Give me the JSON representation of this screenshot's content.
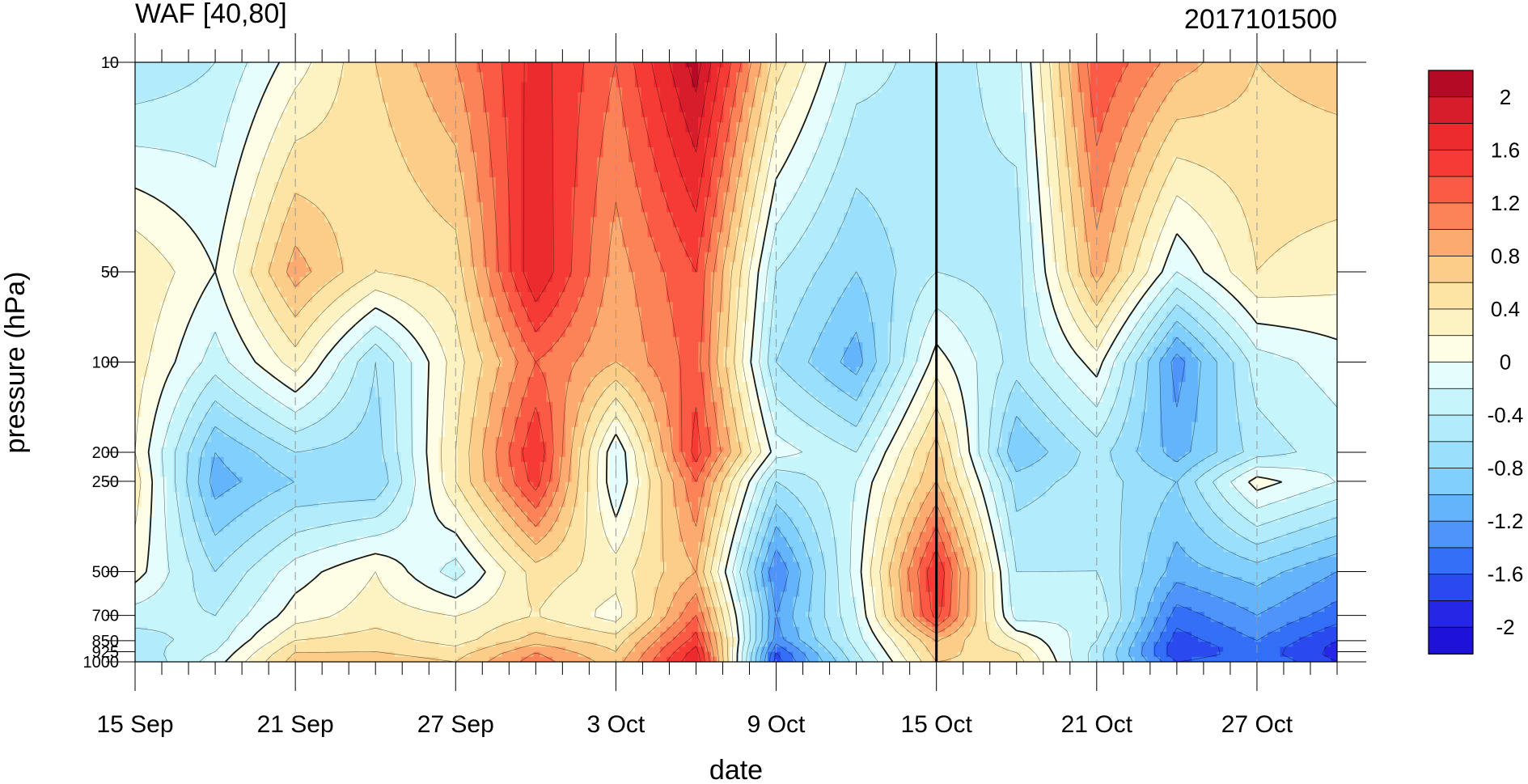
{
  "chart_data": {
    "type": "heatmap",
    "title": "WAF [40,80]",
    "subtitle_right": "2017101500",
    "xlabel": "date",
    "ylabel": "pressure (hPa)",
    "x_tick_labels": [
      "15 Sep",
      "21 Sep",
      "27 Sep",
      "3 Oct",
      "9 Oct",
      "15 Oct",
      "21 Oct",
      "27 Oct"
    ],
    "x_tick_days": [
      0,
      6,
      12,
      18,
      24,
      30,
      36,
      42
    ],
    "x_range_days": [
      0,
      45
    ],
    "analysis_day": 30,
    "y_levels": [
      10,
      50,
      100,
      200,
      250,
      500,
      700,
      850,
      925,
      1000
    ],
    "y_tick_labels": [
      "10",
      "50",
      "100",
      "200",
      "250",
      "500",
      "700",
      "850",
      "925",
      "1000"
    ],
    "y_scale": "log",
    "y_reversed": true,
    "ylim": [
      10,
      1000
    ],
    "colorbar": {
      "placement": "right",
      "levels": [
        -2.2,
        -2.0,
        -1.8,
        -1.6,
        -1.4,
        -1.2,
        -1.0,
        -0.8,
        -0.6,
        -0.4,
        -0.2,
        0.0,
        0.2,
        0.4,
        0.6,
        0.8,
        1.0,
        1.2,
        1.4,
        1.6,
        1.8,
        2.0,
        2.2
      ],
      "labels": [
        "2",
        "1.6",
        "1.2",
        "0.8",
        "0.4",
        "0",
        "-0.4",
        "-0.8",
        "-1.2",
        "-1.6",
        "-2"
      ],
      "label_values": [
        2,
        1.6,
        1.2,
        0.8,
        0.4,
        0,
        -0.4,
        -0.8,
        -1.2,
        -1.6,
        -2
      ],
      "colors": [
        "#1e12d8",
        "#2526e6",
        "#2a4af0",
        "#336ff7",
        "#4f94fa",
        "#64b4fb",
        "#81cffc",
        "#9adffc",
        "#b2ecfc",
        "#c6f5fc",
        "#e6fdfe",
        "#fefde5",
        "#fdf2c1",
        "#fde3a4",
        "#fccd88",
        "#fcaa6f",
        "#fc8258",
        "#fb5a45",
        "#f63a35",
        "#eb2b2e",
        "#d71d2c",
        "#b50a25"
      ]
    },
    "row_levels": [
      10,
      50,
      100,
      200,
      250,
      500,
      700,
      850,
      925,
      1000
    ],
    "col_days": [
      0,
      3,
      6,
      9,
      12,
      15,
      18,
      21,
      24,
      27,
      30,
      33,
      36,
      39,
      42,
      45
    ],
    "values": [
      [
        -0.6,
        -0.4,
        0.1,
        0.6,
        1.0,
        1.7,
        1.2,
        2.1,
        0.5,
        -0.3,
        -0.5,
        -0.3,
        1.4,
        0.9,
        0.6,
        0.7
      ],
      [
        0.4,
        0.0,
        0.9,
        0.4,
        0.5,
        1.8,
        0.9,
        1.4,
        -0.4,
        -0.8,
        -0.4,
        -0.5,
        0.9,
        -0.2,
        0.4,
        0.3
      ],
      [
        0.3,
        -0.3,
        0.3,
        -0.6,
        0.3,
        1.2,
        0.8,
        1.3,
        -0.6,
        -1.1,
        0.1,
        -0.5,
        0.1,
        -1.3,
        -0.3,
        -0.1
      ],
      [
        0.2,
        -1.0,
        -0.6,
        -0.7,
        0.4,
        1.6,
        -0.2,
        1.5,
        -0.1,
        -0.4,
        0.7,
        -1.0,
        -0.5,
        -1.1,
        -0.5,
        -0.3
      ],
      [
        0.3,
        -1.1,
        -0.8,
        -0.8,
        0.4,
        1.5,
        -0.2,
        1.2,
        -0.6,
        -0.2,
        0.8,
        -0.7,
        -0.5,
        -0.8,
        0.1,
        -0.2
      ],
      [
        0.1,
        -0.6,
        -0.1,
        0.2,
        -0.3,
        0.5,
        0.3,
        0.8,
        -1.4,
        -0.1,
        1.6,
        -0.4,
        -0.4,
        -1.1,
        -0.9,
        -1.2
      ],
      [
        -0.3,
        -0.4,
        0.1,
        0.3,
        0.2,
        0.4,
        0.1,
        1.2,
        -1.2,
        -0.2,
        1.5,
        -0.3,
        -0.2,
        -1.5,
        -1.2,
        -1.5
      ],
      [
        -0.5,
        -0.3,
        0.4,
        0.5,
        0.3,
        0.7,
        0.5,
        1.5,
        -1.3,
        -0.3,
        0.8,
        0.2,
        -0.4,
        -1.7,
        -1.4,
        -1.8
      ],
      [
        -0.5,
        -0.2,
        0.6,
        0.6,
        0.5,
        1.0,
        0.6,
        1.7,
        -1.6,
        -0.4,
        0.7,
        0.4,
        -0.5,
        -1.8,
        -1.5,
        -1.9
      ],
      [
        -0.6,
        -0.1,
        0.7,
        0.7,
        0.6,
        1.1,
        0.7,
        1.8,
        -1.7,
        -0.5,
        0.6,
        0.5,
        -0.5,
        -1.6,
        -1.4,
        -1.8
      ]
    ]
  }
}
